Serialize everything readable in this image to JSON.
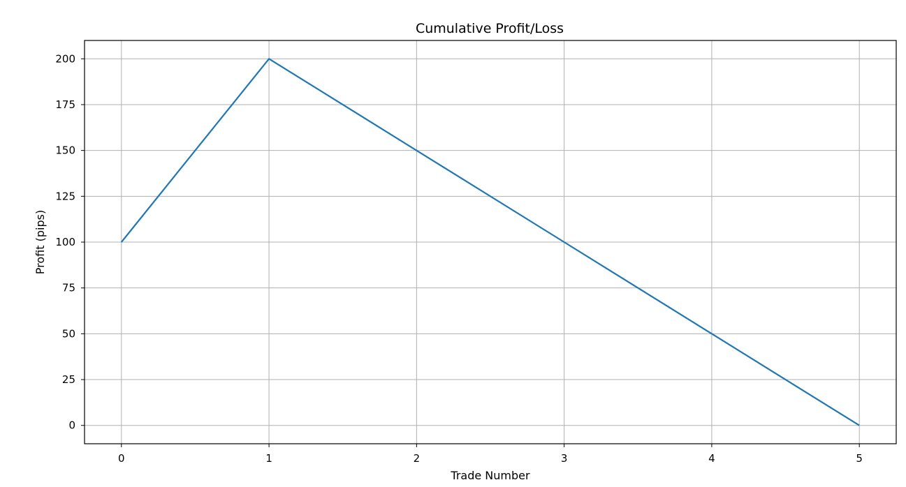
{
  "chart_data": {
    "type": "line",
    "title": "Cumulative Profit/Loss",
    "xlabel": "Trade Number",
    "ylabel": "Profit (pips)",
    "x": [
      0,
      1,
      2,
      3,
      4,
      5
    ],
    "series": [
      {
        "values": [
          100,
          200,
          150,
          100,
          50,
          0
        ],
        "color": "#1f77b4"
      }
    ],
    "xlim": [
      -0.25,
      5.25
    ],
    "ylim": [
      -10,
      210
    ],
    "xticks": [
      0,
      1,
      2,
      3,
      4,
      5
    ],
    "yticks": [
      0,
      25,
      50,
      75,
      100,
      125,
      150,
      175,
      200
    ],
    "grid": true
  }
}
